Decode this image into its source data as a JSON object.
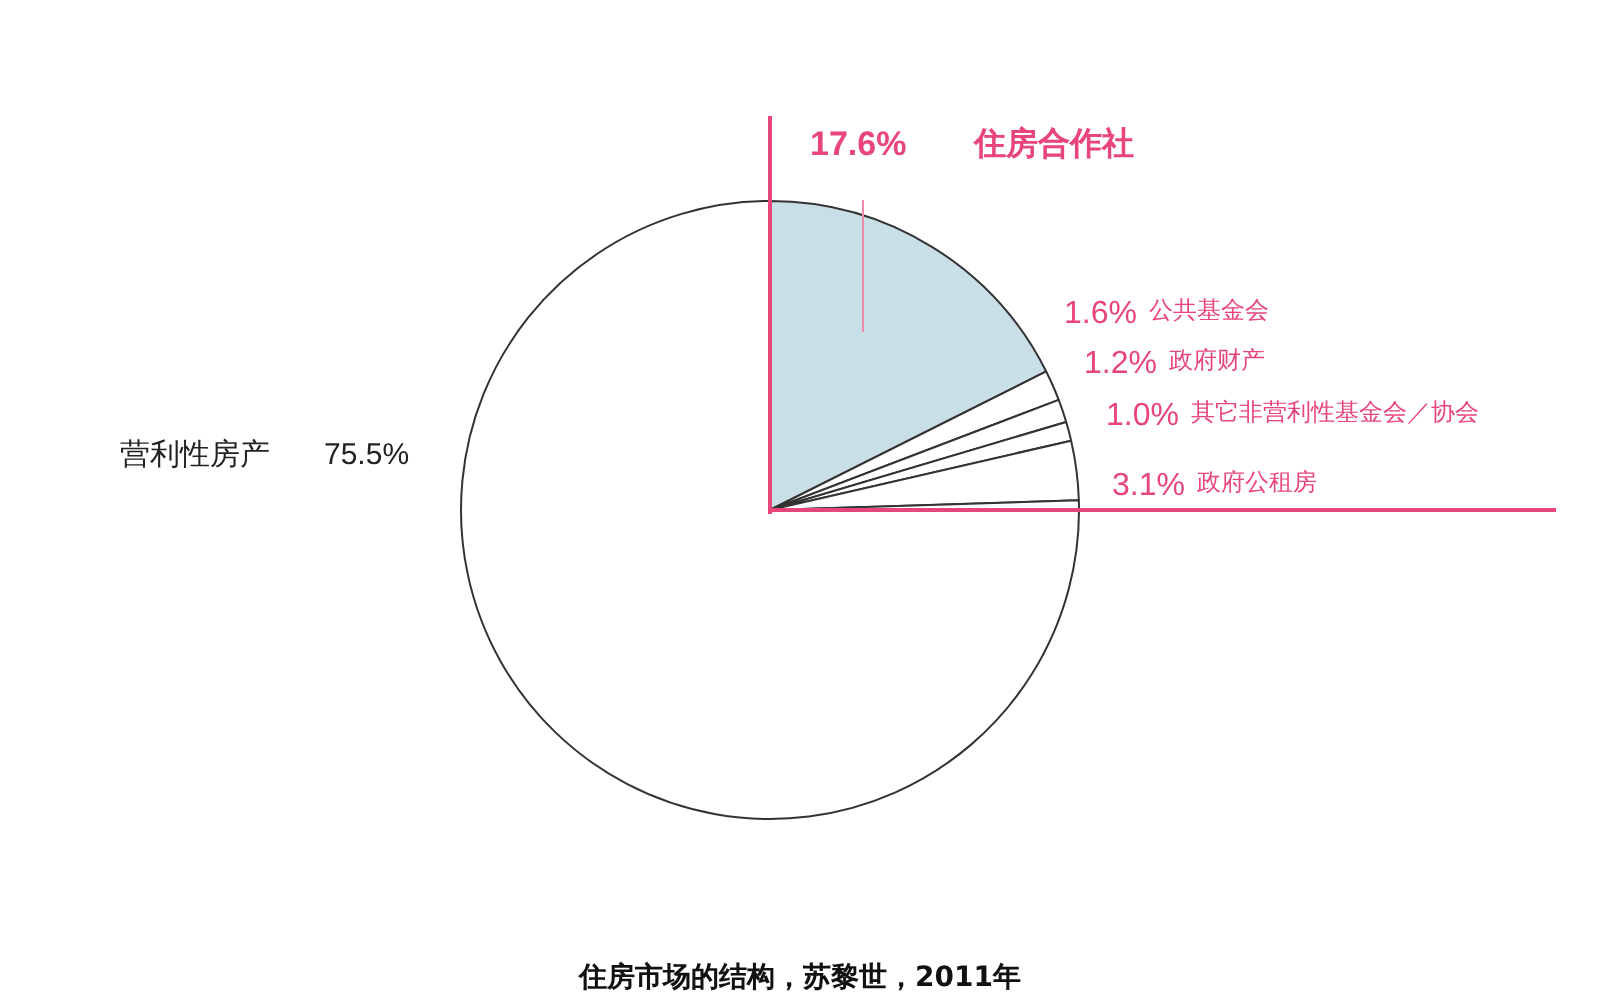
{
  "chart_data": {
    "type": "pie",
    "title": "住房市场的结构，苏黎世，2011年",
    "categories": [
      "住房合作社",
      "公共基金会",
      "政府财产",
      "其它非营利性基金会／协会",
      "政府公租房",
      "营利性房产"
    ],
    "values": [
      17.6,
      1.6,
      1.2,
      1.0,
      3.1,
      75.5
    ],
    "value_labels": [
      "17.6%",
      "1.6%",
      "1.2%",
      "1.0%",
      "3.1%",
      "75.5%"
    ],
    "colors": [
      "#c8dfe7",
      "#ffffff",
      "#ffffff",
      "#ffffff",
      "#ffffff",
      "#ffffff"
    ],
    "legend": false
  }
}
